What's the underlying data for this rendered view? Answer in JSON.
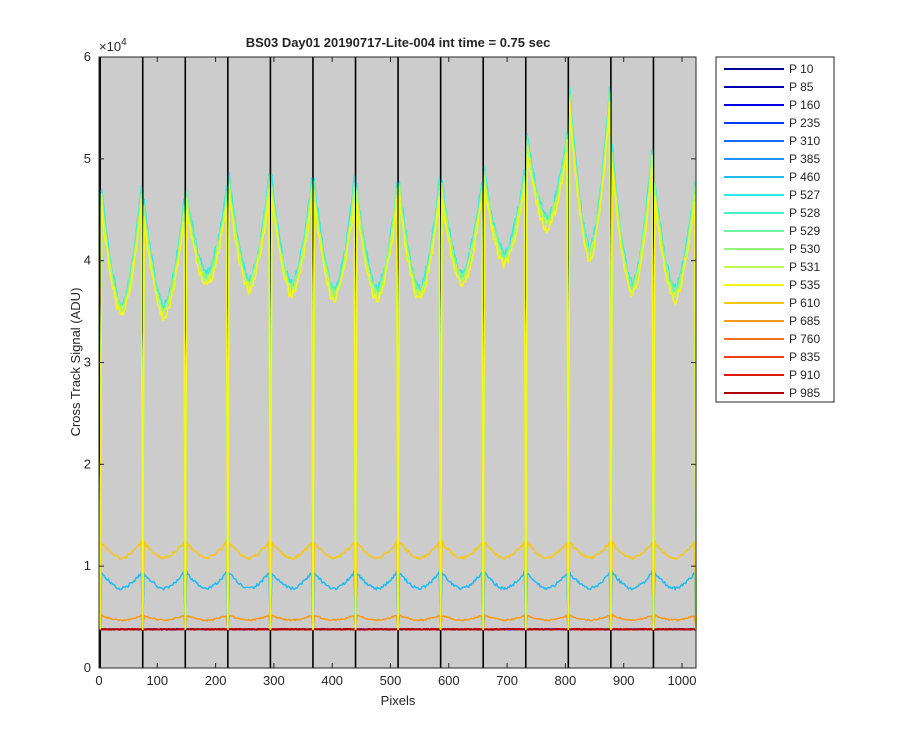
{
  "chart_data": {
    "type": "line",
    "title": "BS03 Day01 20190717-Lite-004 int time = 0.75 sec",
    "xlabel": "Pixels",
    "ylabel": "Cross Track Signal (ADU)",
    "y_exponent_label": "×10",
    "y_exponent_power": "4",
    "xlim": [
      0,
      1024
    ],
    "ylim": [
      0,
      60000
    ],
    "xticks": [
      0,
      100,
      200,
      300,
      400,
      500,
      600,
      700,
      800,
      900,
      1000
    ],
    "yticks": [
      0,
      10000,
      20000,
      30000,
      40000,
      50000,
      60000
    ],
    "ytick_labels": [
      "0",
      "1",
      "2",
      "3",
      "4",
      "5",
      "6"
    ],
    "grid": false,
    "legend_position": "outside-right",
    "plot_background": "#cccccc",
    "dividers_x": [
      2,
      75,
      148,
      221,
      294,
      367,
      440,
      513,
      586,
      659,
      732,
      805,
      878,
      951,
      1024
    ],
    "segment_peaks_high": [
      47000,
      45500,
      46500,
      48000,
      47500,
      47500,
      47000,
      47500,
      47500,
      48500,
      52000,
      57000,
      51000,
      47500
    ],
    "segment_min_high": [
      35000,
      34800,
      38000,
      37500,
      37000,
      36500,
      36500,
      36500,
      38000,
      40000,
      43500,
      40500,
      37000,
      36500
    ],
    "series": [
      {
        "name": "P 10",
        "color": "#00008f",
        "level": "floor"
      },
      {
        "name": "P 85",
        "color": "#0000b3",
        "level": "floor"
      },
      {
        "name": "P 160",
        "color": "#0000e8",
        "level": "floor"
      },
      {
        "name": "P 235",
        "color": "#0a3cff",
        "level": "floor"
      },
      {
        "name": "P 310",
        "color": "#1468ff",
        "level": "floor"
      },
      {
        "name": "P 385",
        "color": "#1e90ff",
        "level": "floor"
      },
      {
        "name": "P 460",
        "color": "#1ebcf0",
        "level": "mid"
      },
      {
        "name": "P 527",
        "color": "#2ee8f0",
        "level": "high"
      },
      {
        "name": "P 528",
        "color": "#48f0c8",
        "level": "high"
      },
      {
        "name": "P 529",
        "color": "#6cf5a0",
        "level": "high"
      },
      {
        "name": "P 530",
        "color": "#96f57a",
        "level": "high"
      },
      {
        "name": "P 531",
        "color": "#c4f550",
        "level": "high"
      },
      {
        "name": "P 535",
        "color": "#f5f51a",
        "level": "high"
      },
      {
        "name": "P 610",
        "color": "#f5c81a",
        "level": "upper-mid"
      },
      {
        "name": "P 685",
        "color": "#f59a1a",
        "level": "low"
      },
      {
        "name": "P 760",
        "color": "#f5701a",
        "level": "floor"
      },
      {
        "name": "P 835",
        "color": "#f53c14",
        "level": "floor"
      },
      {
        "name": "P 910",
        "color": "#e01a0a",
        "level": "floor"
      },
      {
        "name": "P 985",
        "color": "#b00000",
        "level": "floor"
      }
    ],
    "level_values": {
      "floor": 3800,
      "low_peak": 5200,
      "low_min": 4700,
      "mid_peak": 9500,
      "mid_min": 7800,
      "upper_mid_peak": 12500,
      "upper_mid_min": 10800
    }
  }
}
